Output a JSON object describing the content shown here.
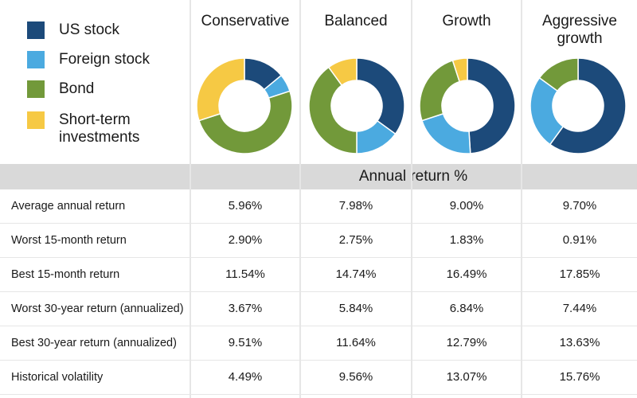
{
  "legend": [
    {
      "label": "US stock",
      "color": "#1c4a7a"
    },
    {
      "label": "Foreign stock",
      "color": "#4baae0"
    },
    {
      "label": "Bond",
      "color": "#72993a"
    },
    {
      "label": "Short-term",
      "label2": "investments",
      "color": "#f6c944"
    }
  ],
  "section_label": "Annual return %",
  "chart_data": [
    {
      "type": "pie",
      "title": "Conservative",
      "title2": "",
      "categories": [
        "US stock",
        "Foreign stock",
        "Bond",
        "Short-term investments"
      ],
      "values": [
        14,
        6,
        50,
        30
      ]
    },
    {
      "type": "pie",
      "title": "Balanced",
      "title2": "",
      "categories": [
        "US stock",
        "Foreign stock",
        "Bond",
        "Short-term investments"
      ],
      "values": [
        35,
        15,
        40,
        10
      ]
    },
    {
      "type": "pie",
      "title": "Growth",
      "title2": "",
      "categories": [
        "US stock",
        "Foreign stock",
        "Bond",
        "Short-term investments"
      ],
      "values": [
        49,
        21,
        25,
        5
      ]
    },
    {
      "type": "pie",
      "title": "Aggressive",
      "title2": "growth",
      "categories": [
        "US stock",
        "Foreign stock",
        "Bond",
        "Short-term investments"
      ],
      "values": [
        60,
        25,
        15,
        0
      ]
    }
  ],
  "table": {
    "rows": [
      {
        "label": "Average annual return",
        "values": [
          "5.96%",
          "7.98%",
          "9.00%",
          "9.70%"
        ]
      },
      {
        "label": "Worst 15-month return",
        "values": [
          "2.90%",
          "2.75%",
          "1.83%",
          "0.91%"
        ]
      },
      {
        "label": "Best 15-month return",
        "values": [
          "11.54%",
          "14.74%",
          "16.49%",
          "17.85%"
        ]
      },
      {
        "label": "Worst 30-year return (annualized)",
        "values": [
          "3.67%",
          "5.84%",
          "6.84%",
          "7.44%"
        ]
      },
      {
        "label": "Best 30-year return (annualized)",
        "values": [
          "9.51%",
          "11.64%",
          "12.79%",
          "13.63%"
        ]
      },
      {
        "label": "Historical volatility",
        "values": [
          "4.49%",
          "9.56%",
          "13.07%",
          "15.76%"
        ]
      }
    ]
  }
}
